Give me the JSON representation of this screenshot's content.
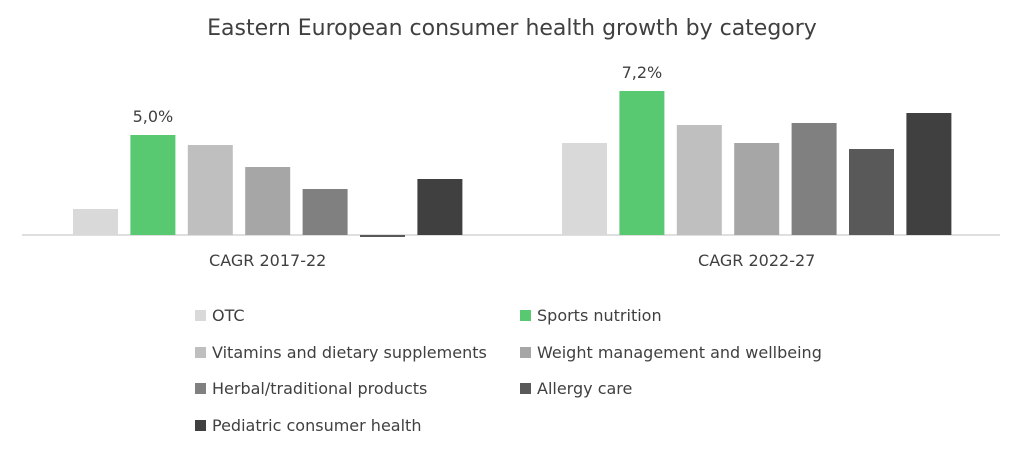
{
  "chart_data": {
    "type": "bar",
    "title": "Eastern European consumer health growth by category",
    "categories": [
      "CAGR 2017-22",
      "CAGR 2022-27"
    ],
    "series": [
      {
        "name": "OTC",
        "color": "#d9d9d9",
        "values": [
          1.3,
          4.6
        ]
      },
      {
        "name": "Sports nutrition",
        "color": "#58c971",
        "values": [
          5.0,
          7.2
        ]
      },
      {
        "name": "Vitamins and dietary supplements",
        "color": "#bfbfbf",
        "values": [
          4.5,
          5.5
        ]
      },
      {
        "name": "Weight management and wellbeing",
        "color": "#a6a6a6",
        "values": [
          3.4,
          4.6
        ]
      },
      {
        "name": "Herbal/traditional products",
        "color": "#808080",
        "values": [
          2.3,
          5.6
        ]
      },
      {
        "name": "Allergy care",
        "color": "#595959",
        "values": [
          -0.1,
          4.3
        ]
      },
      {
        "name": "Pediatric consumer health",
        "color": "#404040",
        "values": [
          2.8,
          6.1
        ]
      }
    ],
    "data_labels": [
      {
        "series": 1,
        "category": 0,
        "text": "5,0%"
      },
      {
        "series": 1,
        "category": 1,
        "text": "7,2%"
      }
    ],
    "legend_position": "bottom",
    "grid": false
  }
}
